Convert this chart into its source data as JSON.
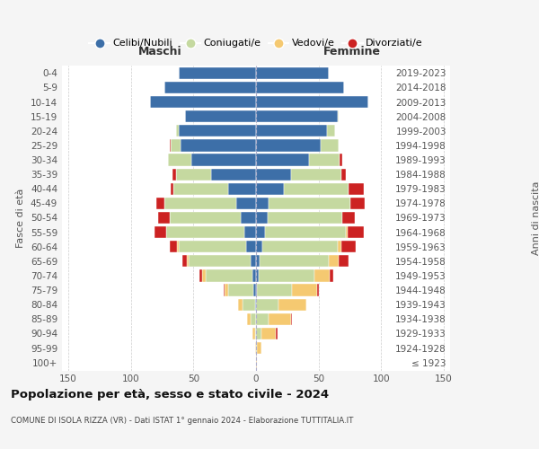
{
  "age_groups": [
    "100+",
    "95-99",
    "90-94",
    "85-89",
    "80-84",
    "75-79",
    "70-74",
    "65-69",
    "60-64",
    "55-59",
    "50-54",
    "45-49",
    "40-44",
    "35-39",
    "30-34",
    "25-29",
    "20-24",
    "15-19",
    "10-14",
    "5-9",
    "0-4"
  ],
  "birth_years": [
    "≤ 1923",
    "1924-1928",
    "1929-1933",
    "1934-1938",
    "1939-1943",
    "1944-1948",
    "1949-1953",
    "1954-1958",
    "1959-1963",
    "1964-1968",
    "1969-1973",
    "1974-1978",
    "1979-1983",
    "1984-1988",
    "1989-1993",
    "1994-1998",
    "1999-2003",
    "2004-2008",
    "2009-2013",
    "2014-2018",
    "2019-2023"
  ],
  "colors": {
    "celibi": "#3d6fa8",
    "coniugati": "#c5d9a0",
    "vedovi": "#f5c971",
    "divorziati": "#cc2222"
  },
  "maschi": {
    "celibi": [
      0,
      0,
      0,
      0,
      1,
      2,
      3,
      4,
      8,
      9,
      12,
      16,
      22,
      36,
      52,
      60,
      62,
      57,
      85,
      73,
      62
    ],
    "coniugati": [
      0,
      0,
      1,
      4,
      10,
      20,
      37,
      50,
      54,
      63,
      57,
      57,
      44,
      28,
      18,
      8,
      2,
      0,
      0,
      0,
      0
    ],
    "vedovi": [
      0,
      1,
      2,
      3,
      3,
      3,
      3,
      1,
      1,
      0,
      0,
      0,
      0,
      0,
      0,
      0,
      0,
      0,
      0,
      0,
      0
    ],
    "divorziati": [
      0,
      0,
      0,
      0,
      0,
      1,
      2,
      4,
      6,
      9,
      9,
      7,
      2,
      3,
      0,
      1,
      0,
      0,
      0,
      0,
      0
    ]
  },
  "femmine": {
    "celibi": [
      0,
      0,
      0,
      0,
      0,
      1,
      2,
      3,
      5,
      7,
      9,
      10,
      22,
      28,
      42,
      52,
      57,
      65,
      90,
      70,
      58
    ],
    "coniugati": [
      0,
      1,
      4,
      10,
      18,
      28,
      45,
      55,
      60,
      65,
      60,
      65,
      52,
      40,
      25,
      14,
      6,
      1,
      0,
      0,
      0
    ],
    "vedovi": [
      1,
      3,
      12,
      18,
      22,
      20,
      12,
      8,
      3,
      1,
      0,
      0,
      0,
      0,
      0,
      0,
      0,
      0,
      0,
      0,
      0
    ],
    "divorziati": [
      0,
      0,
      1,
      1,
      0,
      1,
      3,
      8,
      12,
      13,
      10,
      12,
      12,
      4,
      2,
      0,
      0,
      0,
      0,
      0,
      0
    ]
  },
  "title": "Popolazione per età, sesso e stato civile - 2024",
  "subtitle": "COMUNE DI ISOLA RIZZA (VR) - Dati ISTAT 1° gennaio 2024 - Elaborazione TUTTITALIA.IT",
  "xlabel_maschi": "Maschi",
  "xlabel_femmine": "Femmine",
  "ylabel": "Fasce di età",
  "ylabel_right": "Anni di nascita",
  "xlim": 155,
  "legend_labels": [
    "Celibi/Nubili",
    "Coniugati/e",
    "Vedovi/e",
    "Divorziati/e"
  ],
  "bg_color": "#f5f5f5",
  "plot_bg": "#ffffff",
  "grid_color": "#cccccc"
}
